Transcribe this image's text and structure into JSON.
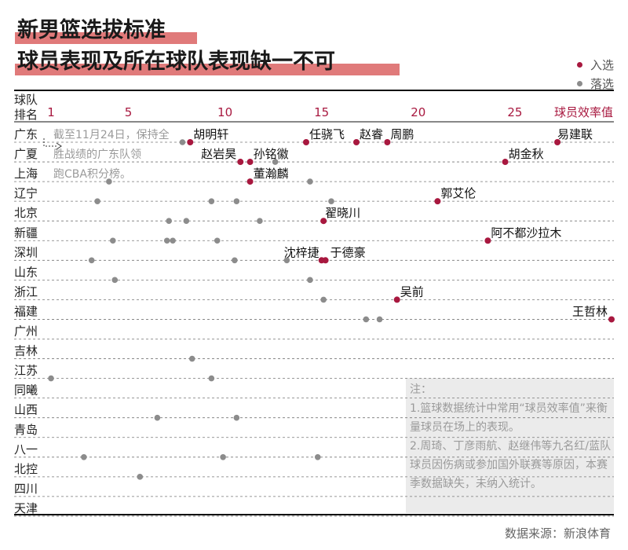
{
  "title": {
    "line1": "新男篮选拔标准",
    "line2": "球员表现及所在球队表现缺一不可"
  },
  "legend": {
    "selected": {
      "label": "入选",
      "color": "#a8183f"
    },
    "not_selected": {
      "label": "落选",
      "color": "#8c8c8c"
    }
  },
  "note": {
    "heading": "注：",
    "items": [
      "1.篮球数据统计中常用“球员效率值”来衡量球员在场上的表现。",
      "2.周琦、丁彦雨航、赵继伟等九名红/蓝队球员因伤病或参加国外联赛等原因，本赛季数据缺失，未纳入统计。"
    ]
  },
  "source": "数据来源：新浪体育",
  "chart_data": {
    "type": "scatter",
    "ylabel": "球队排名",
    "xlabel": "球员效率值",
    "xlim": [
      1,
      30
    ],
    "xticks": [
      1,
      5,
      10,
      15,
      20,
      25
    ],
    "teams": [
      "广东",
      "广夏",
      "上海",
      "辽宁",
      "北京",
      "新疆",
      "深圳",
      "山东",
      "浙江",
      "福建",
      "广州",
      "吉林",
      "江苏",
      "同曦",
      "山西",
      "青岛",
      "八一",
      "北控",
      "四川",
      "天津"
    ],
    "annotation": {
      "text": "截至11月24日，保持全胜战绩的广东队领跑CBA积分榜。",
      "team": "广东"
    },
    "selected": [
      {
        "team": "广东",
        "x": 8.2,
        "name": "胡明轩"
      },
      {
        "team": "广东",
        "x": 14.2,
        "name": "任骁飞"
      },
      {
        "team": "广东",
        "x": 16.8,
        "name": "赵睿"
      },
      {
        "team": "广东",
        "x": 18.4,
        "name": "周鹏"
      },
      {
        "team": "广东",
        "x": 27.2,
        "name": "易建联"
      },
      {
        "team": "广夏",
        "x": 10.8,
        "name": "赵岩昊"
      },
      {
        "team": "广夏",
        "x": 11.3,
        "name": "孙铭徽"
      },
      {
        "team": "广夏",
        "x": 24.5,
        "name": "胡金秋"
      },
      {
        "team": "上海",
        "x": 11.3,
        "name": "董瀚麟"
      },
      {
        "team": "辽宁",
        "x": 21.0,
        "name": "郭艾伦"
      },
      {
        "team": "北京",
        "x": 15.1,
        "name": "翟晓川"
      },
      {
        "team": "新疆",
        "x": 23.6,
        "name": "阿不都沙拉木"
      },
      {
        "team": "深圳",
        "x": 15.0,
        "name": "沈梓捷"
      },
      {
        "team": "深圳",
        "x": 15.2,
        "name": "于德豪"
      },
      {
        "team": "浙江",
        "x": 18.9,
        "name": "吴前"
      },
      {
        "team": "福建",
        "x": 30.0,
        "name": "王哲林"
      }
    ],
    "not_selected": [
      {
        "team": "广东",
        "x": 7.8
      },
      {
        "team": "广夏",
        "x": 12.6
      },
      {
        "team": "上海",
        "x": 4.0
      },
      {
        "team": "上海",
        "x": 14.4
      },
      {
        "team": "辽宁",
        "x": 3.4
      },
      {
        "team": "辽宁",
        "x": 9.3
      },
      {
        "team": "辽宁",
        "x": 10.6
      },
      {
        "team": "辽宁",
        "x": 15.5
      },
      {
        "team": "北京",
        "x": 7.1
      },
      {
        "team": "北京",
        "x": 8.0
      },
      {
        "team": "北京",
        "x": 11.8
      },
      {
        "team": "新疆",
        "x": 4.2
      },
      {
        "team": "新疆",
        "x": 7.0
      },
      {
        "team": "新疆",
        "x": 7.3
      },
      {
        "team": "新疆",
        "x": 9.6
      },
      {
        "team": "深圳",
        "x": 3.1
      },
      {
        "team": "深圳",
        "x": 10.5
      },
      {
        "team": "深圳",
        "x": 13.2
      },
      {
        "team": "山东",
        "x": 4.3
      },
      {
        "team": "山东",
        "x": 14.4
      },
      {
        "team": "浙江",
        "x": 15.1
      },
      {
        "team": "福建",
        "x": 17.3
      },
      {
        "team": "福建",
        "x": 18.0
      },
      {
        "team": "吉林",
        "x": 8.3
      },
      {
        "team": "江苏",
        "x": 1.0
      },
      {
        "team": "江苏",
        "x": 9.3
      },
      {
        "team": "山西",
        "x": 6.5
      },
      {
        "team": "山西",
        "x": 10.6
      },
      {
        "team": "八一",
        "x": 2.7
      },
      {
        "team": "八一",
        "x": 9.9
      },
      {
        "team": "八一",
        "x": 14.8
      },
      {
        "team": "北控",
        "x": 5.6
      }
    ]
  }
}
